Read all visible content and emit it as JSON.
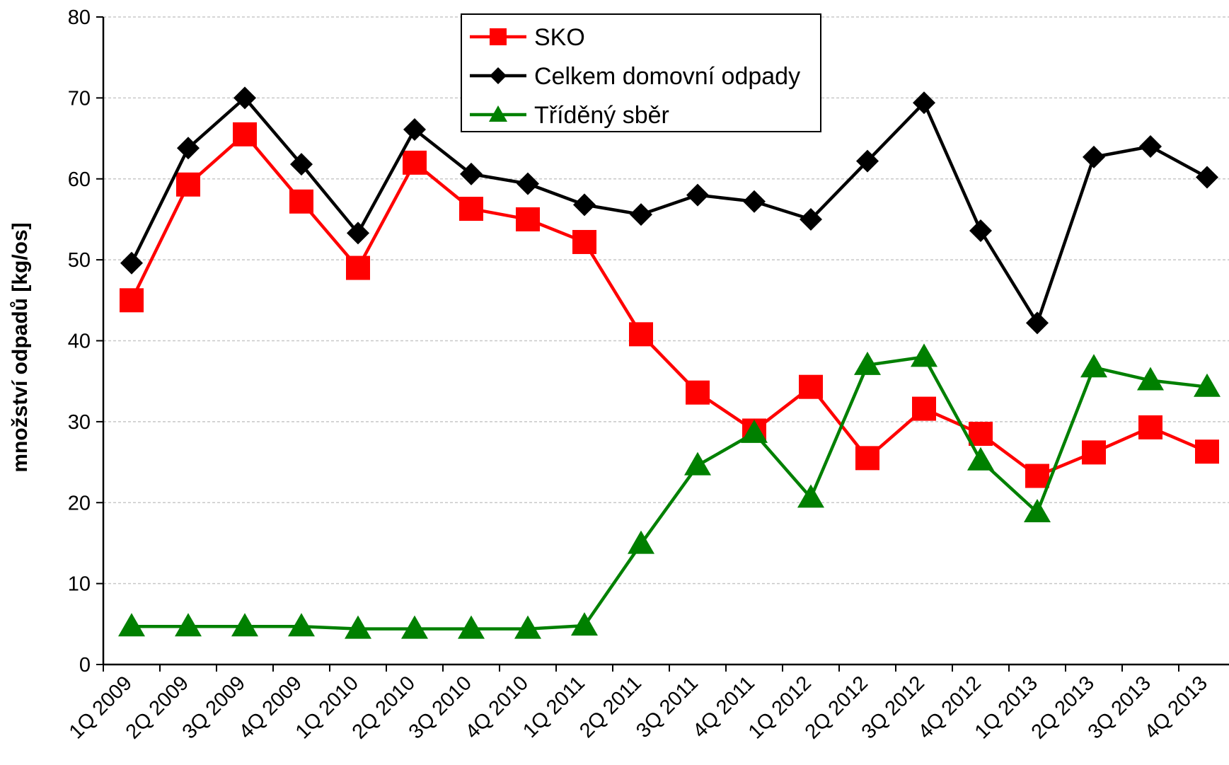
{
  "chart_data": {
    "type": "line",
    "ylabel": "množství odpadů [kg/os]",
    "xlabel": "",
    "ylim": [
      0,
      80
    ],
    "yticks": [
      0,
      10,
      20,
      30,
      40,
      50,
      60,
      70,
      80
    ],
    "grid": "horizontal dashed",
    "legend_position": "top-center",
    "categories": [
      "1Q 2009",
      "2Q 2009",
      "3Q 2009",
      "4Q 2009",
      "1Q 2010",
      "2Q 2010",
      "3Q 2010",
      "4Q 2010",
      "1Q 2011",
      "2Q 2011",
      "3Q 2011",
      "4Q 2011",
      "1Q 2012",
      "2Q 2012",
      "3Q 2012",
      "4Q 2012",
      "1Q 2013",
      "2Q 2013",
      "3Q 2013",
      "4Q 2013"
    ],
    "series": [
      {
        "name": "SKO",
        "color": "#ff0000",
        "marker": "square",
        "values": [
          45.0,
          59.3,
          65.5,
          57.2,
          49.0,
          62.0,
          56.3,
          55.0,
          52.2,
          40.8,
          33.6,
          28.9,
          34.3,
          25.5,
          31.6,
          28.5,
          23.3,
          26.2,
          29.3,
          26.3
        ]
      },
      {
        "name": "Celkem domovní odpady",
        "color": "#000000",
        "marker": "diamond",
        "values": [
          49.6,
          63.8,
          70.0,
          61.8,
          53.3,
          66.1,
          60.6,
          59.4,
          56.8,
          55.6,
          58.0,
          57.2,
          55.0,
          62.2,
          69.4,
          53.6,
          42.2,
          62.7,
          64.0,
          60.2
        ]
      },
      {
        "name": "Tříděný sběr",
        "color": "#008000",
        "marker": "triangle",
        "values": [
          4.7,
          4.7,
          4.7,
          4.7,
          4.4,
          4.4,
          4.4,
          4.4,
          4.8,
          14.9,
          24.6,
          28.6,
          20.6,
          37.0,
          38.0,
          25.2,
          18.8,
          36.7,
          35.1,
          34.3
        ]
      }
    ]
  }
}
